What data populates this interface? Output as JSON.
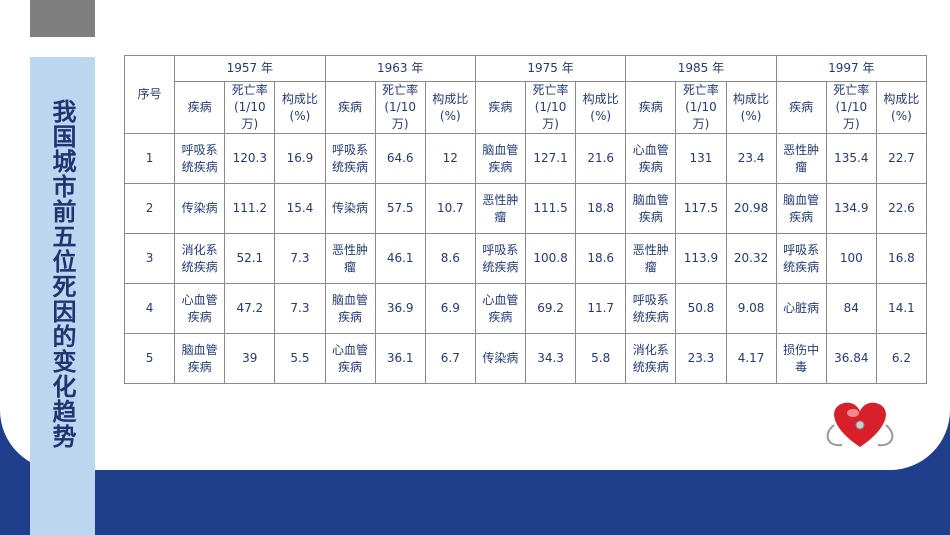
{
  "slide": {
    "title": "我国城市前五位死因的变化趋势"
  },
  "table": {
    "index_header": "序号",
    "years": [
      "1957 年",
      "1963 年",
      "1975 年",
      "1985 年",
      "1997 年"
    ],
    "subheaders": [
      "疾病",
      "死亡率(1/10万)",
      "构成比(%)"
    ],
    "rows": [
      {
        "index": 1,
        "groups": [
          [
            "呼吸系统疾病",
            120.3,
            16.9
          ],
          [
            "呼吸系统疾病",
            64.6,
            12
          ],
          [
            "脑血管疾病",
            127.1,
            21.6
          ],
          [
            "心血管疾病",
            131,
            23.4
          ],
          [
            "恶性肿瘤",
            135.4,
            22.7
          ]
        ]
      },
      {
        "index": 2,
        "groups": [
          [
            "传染病",
            111.2,
            15.4
          ],
          [
            "传染病",
            57.5,
            10.7
          ],
          [
            "恶性肿瘤",
            111.5,
            18.8
          ],
          [
            "脑血管疾病",
            117.5,
            20.98
          ],
          [
            "脑血管疾病",
            134.9,
            22.6
          ]
        ]
      },
      {
        "index": 3,
        "groups": [
          [
            "消化系统疾病",
            52.1,
            7.3
          ],
          [
            "恶性肿瘤",
            46.1,
            8.6
          ],
          [
            "呼吸系统疾病",
            100.8,
            18.6
          ],
          [
            "恶性肿瘤",
            113.9,
            20.32
          ],
          [
            "呼吸系统疾病",
            100,
            16.8
          ]
        ]
      },
      {
        "index": 4,
        "groups": [
          [
            "心血管疾病",
            47.2,
            7.3
          ],
          [
            "脑血管疾病",
            36.9,
            6.9
          ],
          [
            "心血管疾病",
            69.2,
            11.7
          ],
          [
            "呼吸系统疾病",
            50.8,
            9.08
          ],
          [
            "心脏病",
            84,
            14.1
          ]
        ]
      },
      {
        "index": 5,
        "groups": [
          [
            "脑血管疾病",
            39,
            5.5
          ],
          [
            "心血管疾病",
            36.1,
            6.7
          ],
          [
            "传染病",
            34.3,
            5.8
          ],
          [
            "消化系统疾病",
            23.3,
            4.17
          ],
          [
            "损伤中毒",
            36.84,
            6.2
          ]
        ]
      }
    ]
  }
}
